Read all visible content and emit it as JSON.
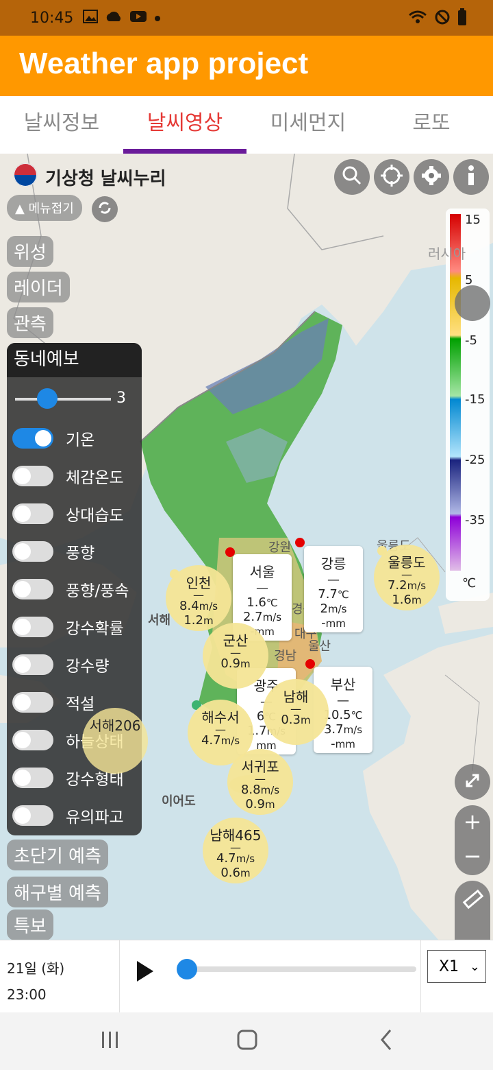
{
  "status_bar": {
    "time": "10:45"
  },
  "app": {
    "title": "Weather app project"
  },
  "tabs": [
    {
      "label": "날씨정보"
    },
    {
      "label": "날씨영상"
    },
    {
      "label": "미세먼지"
    },
    {
      "label": "로또"
    }
  ],
  "map": {
    "brand": "기상청 날씨누리",
    "menu_fold": "메뉴접기",
    "categories": {
      "satellite": "위성",
      "radar": "레이더",
      "observation": "관측",
      "short_forecast": "초단기 예측",
      "sea_forecast": "해구별 예측",
      "warning": "특보"
    },
    "panel": {
      "title": "동네예보",
      "slider_value": "3",
      "toggles": [
        {
          "label": "기온",
          "on": true
        },
        {
          "label": "체감온도",
          "on": false
        },
        {
          "label": "상대습도",
          "on": false
        },
        {
          "label": "풍향",
          "on": false
        },
        {
          "label": "풍향/풍속",
          "on": false
        },
        {
          "label": "강수확률",
          "on": false
        },
        {
          "label": "강수량",
          "on": false
        },
        {
          "label": "적설",
          "on": false
        },
        {
          "label": "하늘상태",
          "on": false
        },
        {
          "label": "강수형태",
          "on": false
        },
        {
          "label": "유의파고",
          "on": false
        }
      ]
    },
    "legend": {
      "labels": [
        "15",
        "5",
        "-5",
        "-15",
        "-25",
        "-35"
      ],
      "unit": "℃"
    },
    "place_labels": {
      "russia": "러시아",
      "gangwon": "강원",
      "ulleungdo_region": "울릉도",
      "gyeongnam": "경남",
      "ulsan": "울산",
      "west_sea": "서해",
      "ieodo": "이어도",
      "daegu": "대구",
      "gyeongbuk": "경북"
    },
    "bubbles": {
      "incheon": {
        "name": "인천",
        "wind": "8.4",
        "wave": "1.2"
      },
      "gunsan": {
        "name": "군산",
        "wave": "0.9"
      },
      "haesuseo": {
        "name": "해수서",
        "wave": "4.7"
      },
      "namhae": {
        "name": "남해",
        "wave": "0.3"
      },
      "seogwipo": {
        "name": "서귀포",
        "wind": "8.8",
        "wave": "0.9"
      },
      "namhae465": {
        "name": "남해465",
        "wind": "4.7",
        "wave": "0.6"
      },
      "ulleungdo": {
        "name": "울릉도",
        "wind": "7.2",
        "wave": "1.6"
      },
      "seohae206": {
        "name": "서해206"
      }
    },
    "cards": {
      "seoul": {
        "name": "서울",
        "temp": "1.6",
        "wind": "2.7",
        "rain": "-"
      },
      "gangneung": {
        "name": "강릉",
        "temp": "7.7",
        "wind": "2",
        "rain": "-"
      },
      "busan": {
        "name": "부산",
        "temp": "10.5",
        "wind": "3.7",
        "rain": "-"
      },
      "gwangju": {
        "name": "광주",
        "temp": "6",
        "wind": "1.7"
      }
    },
    "units": {
      "wind": "m/s",
      "wave": "m",
      "rain": "mm",
      "temp": "℃"
    }
  },
  "player": {
    "day": "21일 (화)",
    "time": "23:00",
    "speed": "X1"
  }
}
